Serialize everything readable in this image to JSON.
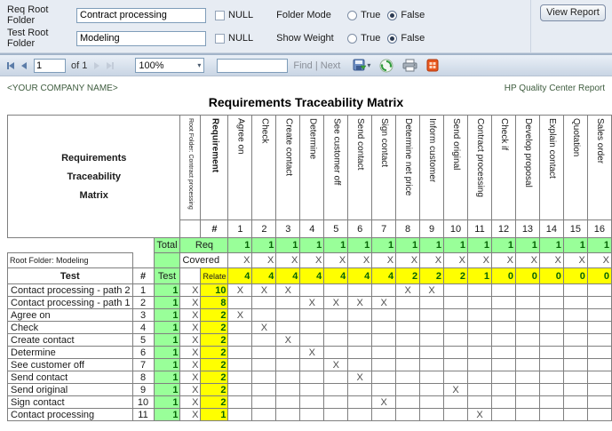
{
  "form": {
    "req_root_folder": {
      "label": "Req Root Folder",
      "value": "Contract processing",
      "null_label": "NULL"
    },
    "test_root_folder": {
      "label": "Test Root Folder",
      "value": "Modeling",
      "null_label": "NULL"
    },
    "folder_mode": {
      "label": "Folder Mode",
      "true_label": "True",
      "false_label": "False",
      "selected": "False"
    },
    "show_weight": {
      "label": "Show Weight",
      "true_label": "True",
      "false_label": "False",
      "selected": "False"
    },
    "view_report_label": "View Report"
  },
  "toolbar": {
    "page_value": "1",
    "of_label": "of 1",
    "zoom_value": "100%",
    "find_label": "Find",
    "separator": "|",
    "next_label": "Next",
    "icon_names": [
      "first-page-icon",
      "previous-page-icon",
      "next-page-icon",
      "last-page-icon",
      "export-icon",
      "refresh-icon",
      "print-icon",
      "export-data-icon"
    ]
  },
  "report": {
    "company": "<YOUR COMPANY NAME>",
    "product": "HP Quality Center Report",
    "title": "Requirements Traceability Matrix"
  },
  "matrix": {
    "left_title_lines": [
      "Requirements",
      "Traceability",
      "Matrix"
    ],
    "req_root_header": "Root Folder: Contract processing",
    "requirement_header": "Requirement",
    "requirements": [
      "Agree on",
      "Check",
      "Create contact",
      "Determine",
      "See customer off",
      "Send contact",
      "Sign contact",
      "Determine net price",
      "Inform customer",
      "Send original",
      "Contract processing",
      "Check if",
      "Develop proposal",
      "Explain contact",
      "Quotation",
      "Sales order"
    ],
    "hash_label": "#",
    "numbers": [
      1,
      2,
      3,
      4,
      5,
      6,
      7,
      8,
      9,
      10,
      11,
      12,
      13,
      14,
      15,
      16
    ],
    "total_label": "Total",
    "req_label": "Req",
    "covered_label": "Covered",
    "relate_label": "Relate",
    "test_root_label": "Root Folder: Modeling",
    "test_header": "Test",
    "test_col_label": "Test",
    "req_totals": [
      1,
      1,
      1,
      1,
      1,
      1,
      1,
      1,
      1,
      1,
      1,
      1,
      1,
      1,
      1,
      1
    ],
    "covered_marks": [
      "X",
      "X",
      "X",
      "X",
      "X",
      "X",
      "X",
      "X",
      "X",
      "X",
      "X",
      "X",
      "X",
      "X",
      "X",
      "X"
    ],
    "relate_totals": [
      4,
      4,
      4,
      4,
      4,
      4,
      4,
      2,
      2,
      2,
      1,
      0,
      0,
      0,
      0,
      0
    ],
    "mark_symbol": "X",
    "tests": [
      {
        "name": "Contact processing - path 2",
        "num": 1,
        "test_total": 1,
        "covered": "X",
        "relate": 10,
        "marks": [
          1,
          2,
          3,
          8,
          9
        ]
      },
      {
        "name": "Contact processing - path 1",
        "num": 2,
        "test_total": 1,
        "covered": "X",
        "relate": 8,
        "marks": [
          4,
          5,
          6,
          7
        ]
      },
      {
        "name": "Agree on",
        "num": 3,
        "test_total": 1,
        "covered": "X",
        "relate": 2,
        "marks": [
          1
        ]
      },
      {
        "name": "Check",
        "num": 4,
        "test_total": 1,
        "covered": "X",
        "relate": 2,
        "marks": [
          2
        ]
      },
      {
        "name": "Create contact",
        "num": 5,
        "test_total": 1,
        "covered": "X",
        "relate": 2,
        "marks": [
          3
        ]
      },
      {
        "name": "Determine",
        "num": 6,
        "test_total": 1,
        "covered": "X",
        "relate": 2,
        "marks": [
          4
        ]
      },
      {
        "name": "See customer off",
        "num": 7,
        "test_total": 1,
        "covered": "X",
        "relate": 2,
        "marks": [
          5
        ]
      },
      {
        "name": "Send contact",
        "num": 8,
        "test_total": 1,
        "covered": "X",
        "relate": 2,
        "marks": [
          6
        ]
      },
      {
        "name": "Send original",
        "num": 9,
        "test_total": 1,
        "covered": "X",
        "relate": 2,
        "marks": [
          10
        ]
      },
      {
        "name": "Sign contact",
        "num": 10,
        "test_total": 1,
        "covered": "X",
        "relate": 2,
        "marks": [
          7
        ]
      },
      {
        "name": "Contact processing",
        "num": 11,
        "test_total": 1,
        "covered": "X",
        "relate": 1,
        "marks": [
          11
        ]
      }
    ]
  }
}
